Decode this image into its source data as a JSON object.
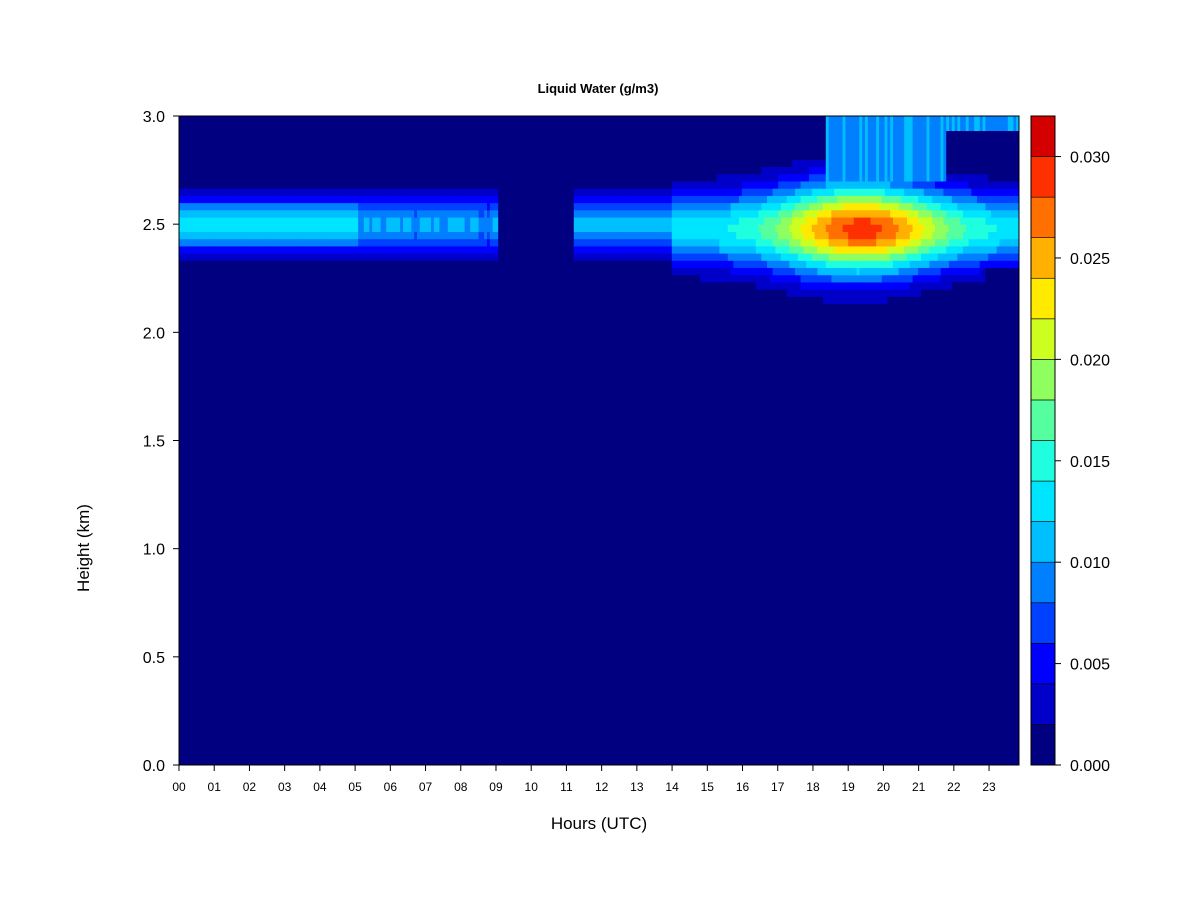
{
  "chart_data": {
    "type": "heatmap",
    "title": "Liquid Water (g/m3)",
    "xlabel": "Hours (UTC)",
    "ylabel": "Height (km)",
    "xlim": [
      0,
      23.85
    ],
    "ylim": [
      0,
      3.0
    ],
    "x_ticks": [
      "00",
      "01",
      "02",
      "03",
      "04",
      "05",
      "06",
      "07",
      "08",
      "09",
      "10",
      "11",
      "12",
      "13",
      "14",
      "15",
      "16",
      "17",
      "18",
      "19",
      "20",
      "21",
      "22",
      "23"
    ],
    "y_ticks": [
      "0.0",
      "0.5",
      "1.0",
      "1.5",
      "2.0",
      "2.5",
      "3.0"
    ],
    "colorbar": {
      "range": [
        0,
        0.032
      ],
      "ticks": [
        "0.000",
        "0.005",
        "0.010",
        "0.015",
        "0.020",
        "0.025",
        "0.030"
      ],
      "tick_values": [
        0,
        0.005,
        0.01,
        0.015,
        0.02,
        0.025,
        0.03
      ],
      "levels": [
        0,
        0.002,
        0.004,
        0.006,
        0.008,
        0.01,
        0.012,
        0.014,
        0.016,
        0.018,
        0.02,
        0.022,
        0.024,
        0.026,
        0.028,
        0.03,
        0.032
      ],
      "colors": [
        "#000080",
        "#0000c8",
        "#0000ff",
        "#0040ff",
        "#0080ff",
        "#00bfff",
        "#00e5ff",
        "#1fffe0",
        "#55ff9f",
        "#8fff5f",
        "#ccff1f",
        "#ffea00",
        "#ffb000",
        "#ff7000",
        "#ff3000",
        "#d40000",
        "#800000"
      ]
    },
    "features": [
      {
        "name": "morning cloud layer",
        "x_range": [
          0,
          9.1
        ],
        "y_center_km": 2.5,
        "y_range_km": [
          2.25,
          2.75
        ],
        "peak_g_m3": 0.013
      },
      {
        "name": "mid-day cloud layer",
        "x_range": [
          11.2,
          14.0
        ],
        "y_center_km": 2.5,
        "y_range_km": [
          2.25,
          2.75
        ],
        "peak_g_m3": 0.012
      },
      {
        "name": "afternoon cloud layer",
        "x_range": [
          14.0,
          23.85
        ],
        "y_center_km": 2.5,
        "y_range_km": [
          2.05,
          3.0
        ],
        "peak_g_m3": 0.028
      }
    ]
  }
}
